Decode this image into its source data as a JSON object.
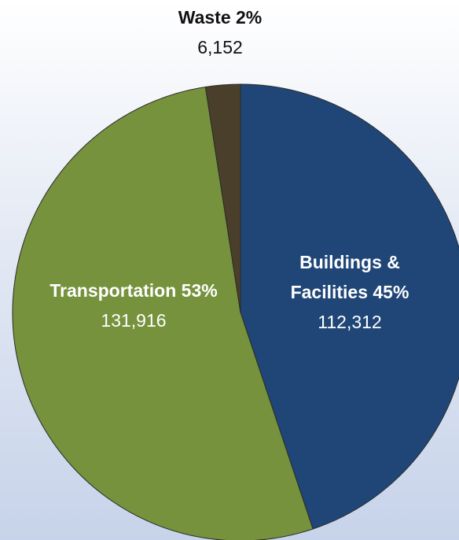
{
  "chart_data": {
    "type": "pie",
    "categories": [
      "Buildings & Facilities",
      "Transportation",
      "Waste"
    ],
    "values": [
      112312,
      131916,
      6152
    ],
    "value_labels": [
      "112,312",
      "131,916",
      "6,152"
    ],
    "percents": [
      45,
      53,
      2
    ],
    "percent_labels": [
      "45%",
      "53%",
      "2%"
    ],
    "colors": [
      "#1f4677",
      "#76923c",
      "#4a3f2a"
    ]
  }
}
